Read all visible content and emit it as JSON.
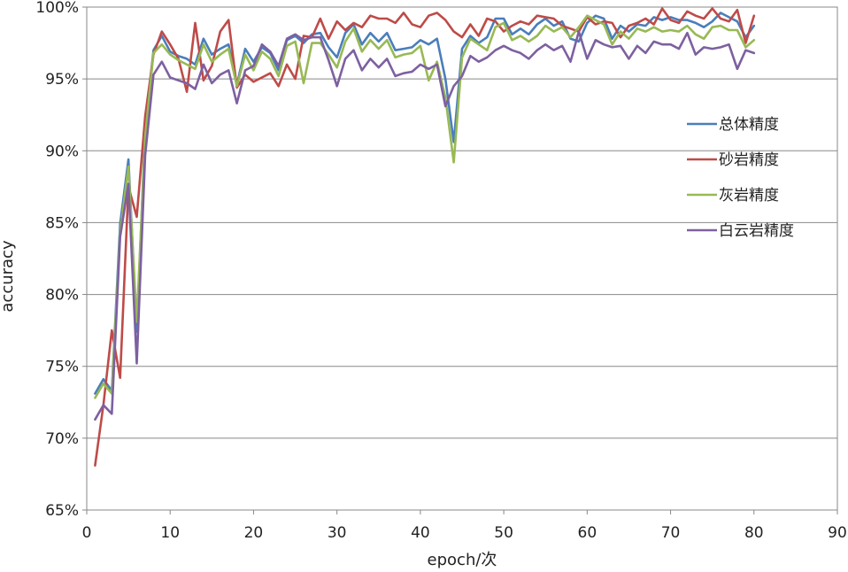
{
  "chart_data": {
    "type": "line",
    "xlabel": "epoch/次",
    "ylabel": "accuracy",
    "xlim": [
      0,
      90
    ],
    "ylim": [
      65,
      100
    ],
    "x_ticks": [
      "0",
      "10",
      "20",
      "30",
      "40",
      "50",
      "60",
      "70",
      "80",
      "90"
    ],
    "y_ticks": [
      "65%",
      "70%",
      "75%",
      "80%",
      "85%",
      "90%",
      "95%",
      "100%"
    ],
    "grid": "horizontal",
    "legend_position": "right",
    "x": [
      1,
      2,
      3,
      4,
      5,
      6,
      7,
      8,
      9,
      10,
      11,
      12,
      13,
      14,
      15,
      16,
      17,
      18,
      19,
      20,
      21,
      22,
      23,
      24,
      25,
      26,
      27,
      28,
      29,
      30,
      31,
      32,
      33,
      34,
      35,
      36,
      37,
      38,
      39,
      40,
      41,
      42,
      43,
      44,
      45,
      46,
      47,
      48,
      49,
      50,
      51,
      52,
      53,
      54,
      55,
      56,
      57,
      58,
      59,
      60,
      61,
      62,
      63,
      64,
      65,
      66,
      67,
      68,
      69,
      70,
      71,
      72,
      73,
      74,
      75,
      76,
      77,
      78,
      79,
      80
    ],
    "series": [
      {
        "name": "总体精度",
        "color": "#4a7ebb",
        "values": [
          73.1,
          74.1,
          73.3,
          84.9,
          89.4,
          77.4,
          91.5,
          97.0,
          98.0,
          96.9,
          96.6,
          96.4,
          96.0,
          97.8,
          96.7,
          97.1,
          97.4,
          94.6,
          97.1,
          96.2,
          97.2,
          96.8,
          95.6,
          97.7,
          98.0,
          97.5,
          98.1,
          98.2,
          97.2,
          96.5,
          98.2,
          98.8,
          97.4,
          98.2,
          97.6,
          98.2,
          97.0,
          97.1,
          97.2,
          97.7,
          97.4,
          97.8,
          95.0,
          90.6,
          97.1,
          98.0,
          97.5,
          97.9,
          99.2,
          99.2,
          98.1,
          98.5,
          98.1,
          98.8,
          99.2,
          98.7,
          99.0,
          97.8,
          97.6,
          98.9,
          99.4,
          99.2,
          97.8,
          98.7,
          98.3,
          98.8,
          98.7,
          99.3,
          99.1,
          99.3,
          99.1,
          99.1,
          98.9,
          98.6,
          99.0,
          99.6,
          99.3,
          99.0,
          97.9,
          98.7
        ]
      },
      {
        "name": "砂岩精度",
        "color": "#be4b48",
        "values": [
          68.1,
          72.3,
          77.5,
          74.2,
          87.5,
          85.4,
          92.4,
          96.7,
          98.3,
          97.4,
          96.4,
          94.1,
          98.9,
          94.9,
          95.9,
          98.3,
          99.1,
          94.4,
          95.3,
          94.8,
          95.1,
          95.4,
          94.5,
          96.0,
          95.0,
          98.0,
          97.9,
          99.2,
          97.8,
          99.0,
          98.4,
          98.9,
          98.6,
          99.4,
          99.2,
          99.2,
          98.9,
          99.6,
          98.8,
          98.6,
          99.4,
          99.6,
          99.1,
          98.3,
          97.9,
          98.8,
          98.0,
          99.2,
          99.0,
          98.3,
          98.7,
          99.0,
          98.8,
          99.4,
          99.3,
          99.2,
          98.7,
          98.5,
          98.3,
          99.3,
          98.8,
          99.0,
          98.9,
          97.9,
          98.7,
          98.9,
          99.2,
          98.8,
          99.9,
          99.1,
          98.9,
          99.7,
          99.4,
          99.2,
          99.9,
          99.2,
          99.0,
          99.8,
          97.5,
          99.4
        ]
      },
      {
        "name": "灰岩精度",
        "color": "#98b954",
        "values": [
          72.8,
          73.8,
          73.1,
          84.3,
          88.9,
          78.1,
          91.0,
          96.8,
          97.4,
          96.7,
          96.3,
          96.0,
          95.7,
          97.4,
          96.2,
          96.7,
          97.1,
          94.5,
          96.7,
          95.6,
          96.9,
          96.4,
          95.2,
          97.3,
          97.6,
          94.7,
          97.5,
          97.5,
          96.7,
          95.8,
          97.6,
          98.5,
          96.9,
          97.7,
          97.1,
          97.7,
          96.5,
          96.7,
          96.8,
          97.3,
          94.9,
          96.2,
          93.7,
          89.2,
          96.5,
          97.8,
          97.4,
          97.0,
          98.6,
          98.9,
          97.7,
          98.0,
          97.6,
          98.0,
          98.7,
          98.3,
          98.6,
          97.9,
          98.6,
          99.4,
          99.1,
          98.8,
          97.4,
          98.3,
          97.8,
          98.5,
          98.3,
          98.6,
          98.3,
          98.4,
          98.3,
          98.7,
          98.1,
          97.8,
          98.6,
          98.7,
          98.4,
          98.4,
          97.2,
          97.7
        ]
      },
      {
        "name": "白云岩精度",
        "color": "#7d60a0",
        "values": [
          71.3,
          72.3,
          71.7,
          84.0,
          87.7,
          75.2,
          89.7,
          95.3,
          96.2,
          95.1,
          94.9,
          94.7,
          94.3,
          96.0,
          94.7,
          95.3,
          95.6,
          93.3,
          95.6,
          95.9,
          97.4,
          96.9,
          95.9,
          97.8,
          98.1,
          97.7,
          97.9,
          97.9,
          96.3,
          94.5,
          96.4,
          97.0,
          95.6,
          96.4,
          95.8,
          96.4,
          95.2,
          95.4,
          95.5,
          96.0,
          95.7,
          96.0,
          93.1,
          94.5,
          95.2,
          96.6,
          96.2,
          96.5,
          97.0,
          97.3,
          97.0,
          96.8,
          96.4,
          97.0,
          97.4,
          97.0,
          97.3,
          96.2,
          98.3,
          96.4,
          97.7,
          97.4,
          97.2,
          97.3,
          96.4,
          97.3,
          96.8,
          97.6,
          97.4,
          97.4,
          97.1,
          98.2,
          96.7,
          97.2,
          97.1,
          97.2,
          97.4,
          95.7,
          97.0,
          96.8
        ]
      }
    ]
  }
}
